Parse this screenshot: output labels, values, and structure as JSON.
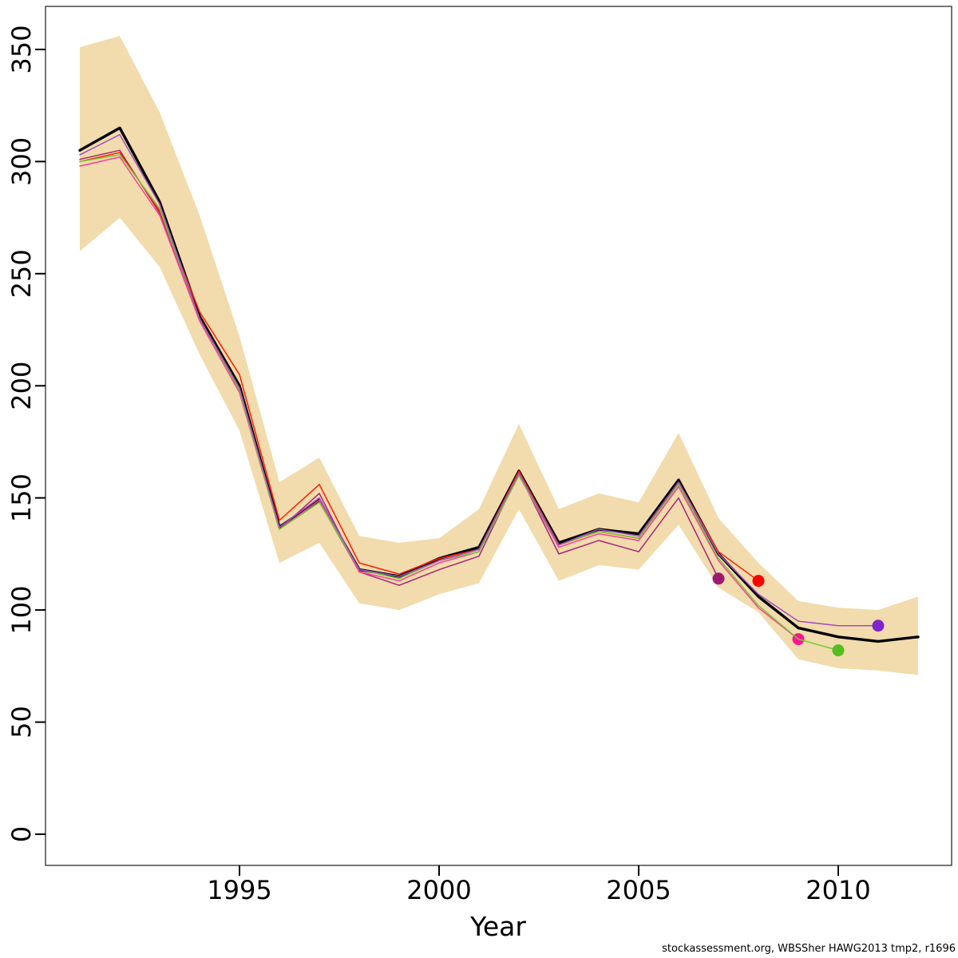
{
  "figure": {
    "xlabel": "Year",
    "ylabel": "",
    "caption": "stockassessment.org, WBSSher  HAWG2013  tmp2, r1696"
  },
  "chart_data": {
    "type": "line",
    "title": "",
    "xlabel": "Year",
    "ylabel": "",
    "grid": false,
    "legend": "none",
    "x_ticks": [
      1995,
      2000,
      2005,
      2010
    ],
    "y_ticks": [
      0,
      50,
      100,
      150,
      200,
      250,
      300,
      350
    ],
    "xlim": [
      1990.14,
      2012.84
    ],
    "ylim": [
      -13.9,
      369.2
    ],
    "years": [
      1991,
      1992,
      1993,
      1994,
      1995,
      1996,
      1997,
      1998,
      1999,
      2000,
      2001,
      2002,
      2003,
      2004,
      2005,
      2006,
      2007,
      2008,
      2009,
      2010,
      2011,
      2012
    ],
    "band": {
      "label": "confidence-band",
      "color": "#F2DBAC",
      "upper": [
        351,
        356,
        322,
        276,
        222,
        157,
        168,
        133,
        130,
        132,
        145,
        183,
        145,
        152,
        148,
        179,
        141,
        121,
        104,
        101,
        100,
        106
      ],
      "lower": [
        260,
        275,
        253,
        214,
        180,
        121,
        130,
        103,
        100,
        107,
        112,
        145,
        113,
        120,
        118,
        138,
        110,
        99,
        78,
        74,
        73,
        71
      ]
    },
    "series": [
      {
        "name": "final-run-2012",
        "color": "#000000",
        "dot_color": "#000000",
        "line_width": 3.4,
        "end_dot": false,
        "start_year": 1991,
        "values": [
          305,
          315,
          282,
          231,
          200,
          137,
          149,
          118,
          115,
          123,
          128,
          162,
          130,
          136,
          134,
          158,
          125,
          106,
          92,
          88,
          86,
          88
        ]
      },
      {
        "name": "retro-2007",
        "color": "#A52578",
        "dot_color": "#9C1B72",
        "line_width": 1.5,
        "end_dot": true,
        "start_year": 1991,
        "values": [
          301,
          305,
          277,
          229,
          197,
          136,
          152,
          117,
          111,
          118,
          124,
          161,
          125,
          131,
          126,
          150,
          114
        ]
      },
      {
        "name": "retro-2008",
        "color": "#FF1E00",
        "dot_color": "#FF0000",
        "line_width": 1.5,
        "end_dot": true,
        "start_year": 1991,
        "values": [
          300,
          304,
          278,
          233,
          205,
          140,
          156,
          121,
          116,
          123,
          127,
          162,
          129,
          135,
          132,
          157,
          126,
          113
        ]
      },
      {
        "name": "retro-2009",
        "color": "#FF3D9A",
        "dot_color": "#FF1493",
        "line_width": 1.5,
        "end_dot": true,
        "start_year": 1991,
        "values": [
          298,
          302,
          276,
          229,
          197,
          136,
          149,
          117,
          113,
          121,
          126,
          160,
          128,
          134,
          131,
          155,
          122,
          101,
          87
        ]
      },
      {
        "name": "retro-2010",
        "color": "#6FCB35",
        "dot_color": "#54BE1E",
        "line_width": 1.5,
        "end_dot": true,
        "start_year": 1991,
        "values": [
          300,
          303,
          279,
          230,
          198,
          136,
          148,
          118,
          114,
          122,
          126,
          160,
          129,
          135,
          132,
          156,
          123,
          102,
          87,
          82
        ]
      },
      {
        "name": "retro-2011",
        "color": "#A04FC3",
        "dot_color": "#7D26CD",
        "line_width": 1.5,
        "end_dot": true,
        "start_year": 1991,
        "values": [
          303,
          312,
          281,
          230,
          199,
          137,
          150,
          118,
          115,
          122,
          127,
          161,
          129,
          136,
          133,
          157,
          125,
          107,
          95,
          93,
          93
        ]
      }
    ]
  }
}
